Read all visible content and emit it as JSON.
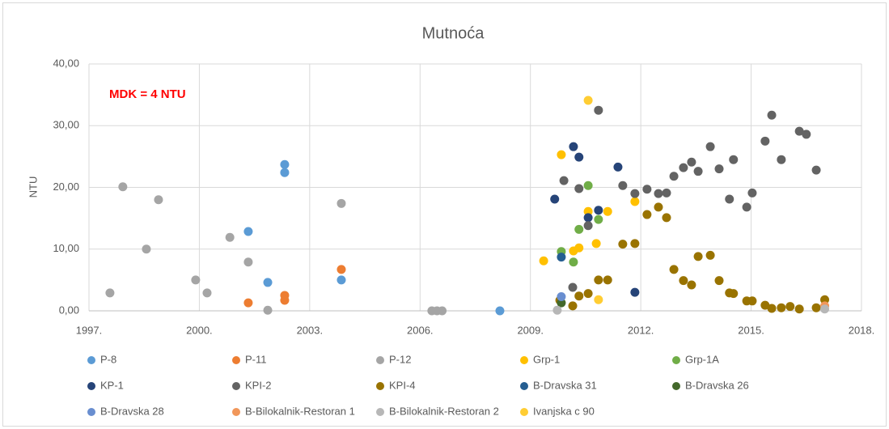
{
  "chart_data": {
    "type": "scatter",
    "title": "Mutnoća",
    "ylabel": "NTU",
    "annotation": "MDK = 4 NTU",
    "xlim": [
      1997,
      2018
    ],
    "xticks": [
      {
        "value": 1997,
        "label": "1997."
      },
      {
        "value": 2000,
        "label": "2000."
      },
      {
        "value": 2003,
        "label": "2003."
      },
      {
        "value": 2006,
        "label": "2006."
      },
      {
        "value": 2009,
        "label": "2009."
      },
      {
        "value": 2012,
        "label": "2012."
      },
      {
        "value": 2015,
        "label": "2015."
      },
      {
        "value": 2018,
        "label": "2018."
      }
    ],
    "ylim": [
      0,
      40
    ],
    "yticks": [
      {
        "value": 0,
        "label": "0,00"
      },
      {
        "value": 10,
        "label": "10,00"
      },
      {
        "value": 20,
        "label": "20,00"
      },
      {
        "value": 30,
        "label": "30,00"
      },
      {
        "value": 40,
        "label": "40,00"
      }
    ],
    "grid": true,
    "series": [
      {
        "name": "P-8",
        "color": "#5b9bd5",
        "x": [
          2001.33,
          2001.86,
          2002.32,
          2002.32,
          2003.86,
          2008.17
        ],
        "values": [
          12.85,
          4.6,
          23.7,
          22.4,
          5.0,
          0.0
        ]
      },
      {
        "name": "P-11",
        "color": "#ed7d31",
        "x": [
          2001.33,
          2002.32,
          2002.32,
          2003.86
        ],
        "values": [
          1.3,
          2.5,
          1.7,
          6.7
        ]
      },
      {
        "name": "P-12",
        "color": "#a5a5a5",
        "x": [
          1997.57,
          1997.92,
          1998.56,
          1998.89,
          1999.9,
          2000.21,
          2000.83,
          2001.33,
          2001.86,
          2003.86,
          2006.32,
          2006.46,
          2006.6
        ],
        "values": [
          2.9,
          20.1,
          10.0,
          18.0,
          5.0,
          2.9,
          11.9,
          7.9,
          0.1,
          17.4,
          0,
          0,
          0
        ]
      },
      {
        "name": "Grp-1",
        "color": "#ffc000",
        "x": [
          2009.36,
          2009.84,
          2010.17,
          2010.32,
          2010.57,
          2011.1,
          2010.79,
          2011.84
        ],
        "values": [
          8.1,
          25.3,
          9.7,
          10.2,
          16.1,
          16.1,
          10.9,
          17.7
        ]
      },
      {
        "name": "Grp-1A",
        "color": "#70ad47",
        "x": [
          2009.84,
          2010.17,
          2010.32,
          2010.57,
          2010.85
        ],
        "values": [
          9.6,
          7.9,
          13.2,
          20.3,
          14.8
        ]
      },
      {
        "name": "KP-1",
        "color": "#264478",
        "x": [
          2009.66,
          2010.17,
          2010.32,
          2010.57,
          2010.85,
          2011.38,
          2011.84
        ],
        "values": [
          18.1,
          26.6,
          24.9,
          15.1,
          16.3,
          23.3,
          3.0
        ]
      },
      {
        "name": "KPI-2",
        "color": "#636363",
        "x": [
          2009.91,
          2010.15,
          2010.32,
          2010.57,
          2010.85,
          2011.51,
          2011.84,
          2012.17,
          2012.48,
          2012.7,
          2012.9,
          2013.16,
          2013.38,
          2013.56,
          2013.89,
          2014.13,
          2014.41,
          2014.52,
          2014.88,
          2015.03,
          2015.38,
          2015.56,
          2015.82,
          2016.31,
          2016.5,
          2016.77
        ],
        "values": [
          21.1,
          3.8,
          19.8,
          13.8,
          32.5,
          20.3,
          19.0,
          19.7,
          19.0,
          19.1,
          21.8,
          23.2,
          24.1,
          22.6,
          26.6,
          23.0,
          18.1,
          24.5,
          16.8,
          19.1,
          27.5,
          31.7,
          24.5,
          29.1,
          28.6,
          22.8
        ]
      },
      {
        "name": "KPI-4",
        "color": "#997300",
        "x": [
          2009.8,
          2010.15,
          2010.32,
          2010.57,
          2010.85,
          2011.1,
          2011.51,
          2011.84,
          2012.17,
          2012.48,
          2012.7,
          2012.9,
          2013.16,
          2013.38,
          2013.56,
          2013.89,
          2014.13,
          2014.41,
          2014.52,
          2014.88,
          2015.03,
          2015.38,
          2015.56,
          2015.82,
          2016.06,
          2016.31,
          2016.77,
          2017.0
        ],
        "values": [
          1.7,
          0.8,
          2.4,
          2.8,
          5.0,
          5.0,
          10.8,
          10.9,
          15.6,
          16.8,
          15.1,
          6.7,
          4.9,
          4.2,
          8.8,
          9.0,
          4.9,
          2.9,
          2.8,
          1.6,
          1.6,
          0.9,
          0.4,
          0.5,
          0.7,
          0.3,
          0.5,
          1.8
        ]
      },
      {
        "name": "B-Dravska 31",
        "color": "#255e91",
        "x": [
          2009.84
        ],
        "values": [
          8.7
        ]
      },
      {
        "name": "B-Dravska 26",
        "color": "#43682b",
        "x": [
          2009.84
        ],
        "values": [
          1.3
        ]
      },
      {
        "name": "B-Dravska 28",
        "color": "#698ed0",
        "x": [
          2009.84
        ],
        "values": [
          2.3
        ]
      },
      {
        "name": "B-Bilokalnik-Restoran 1",
        "color": "#f1975a",
        "x": [
          2017.0
        ],
        "values": [
          0.8
        ]
      },
      {
        "name": "B-Bilokalnik-Restoran 2",
        "color": "#b7b7b7",
        "x": [
          2009.73,
          2017.0
        ],
        "values": [
          0.1,
          0.3
        ]
      },
      {
        "name": "Ivanjska c 90",
        "color": "#ffcd33",
        "x": [
          2010.57,
          2010.85
        ],
        "values": [
          34.1,
          1.8
        ]
      }
    ]
  }
}
